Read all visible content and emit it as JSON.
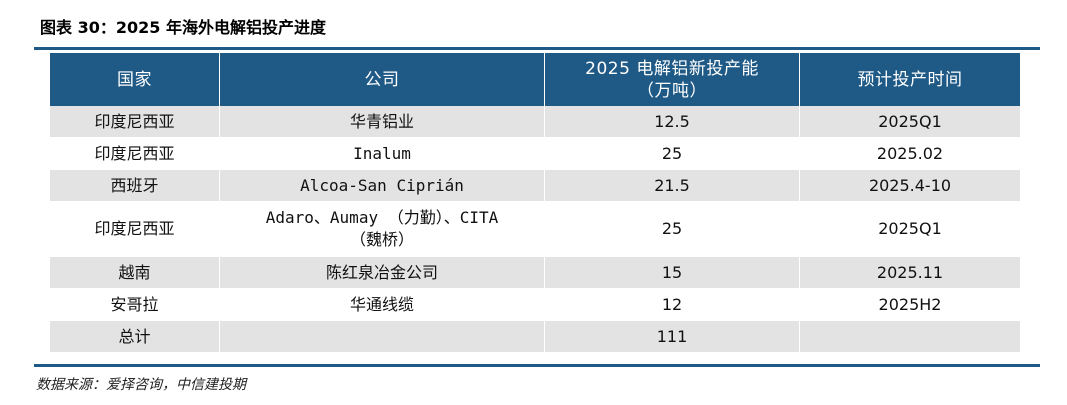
{
  "title": "图表 30：2025 年海外电解铝投产进度",
  "table": {
    "headers": [
      "国家",
      "公司",
      "2025 电解铝新投产能\n（万吨）",
      "预计投产时间"
    ],
    "rows": [
      {
        "country": "印度尼西亚",
        "company": "华青铝业",
        "capacity": "12.5",
        "time": "2025Q1"
      },
      {
        "country": "印度尼西亚",
        "company": "Inalum",
        "capacity": "25",
        "time": "2025.02"
      },
      {
        "country": "西班牙",
        "company": "Alcoa-San Ciprián",
        "capacity": "21.5",
        "time": "2025.4-10"
      },
      {
        "country": "印度尼西亚",
        "company": "Adaro、Aumay （力勤）、CITA\n（魏桥）",
        "capacity": "25",
        "time": "2025Q1"
      },
      {
        "country": "越南",
        "company": "陈红泉冶金公司",
        "capacity": "15",
        "time": "2025.11"
      },
      {
        "country": "安哥拉",
        "company": "华通线缆",
        "capacity": "12",
        "time": "2025H2"
      },
      {
        "country": "总计",
        "company": "",
        "capacity": "111",
        "time": ""
      }
    ]
  },
  "source": "数据来源：爱择咨询，中信建投期",
  "colors": {
    "header_bg": "#1f5a87",
    "header_text": "#ffffff",
    "shade_row": "#e3e3e3",
    "rule": "#1f5a87"
  }
}
